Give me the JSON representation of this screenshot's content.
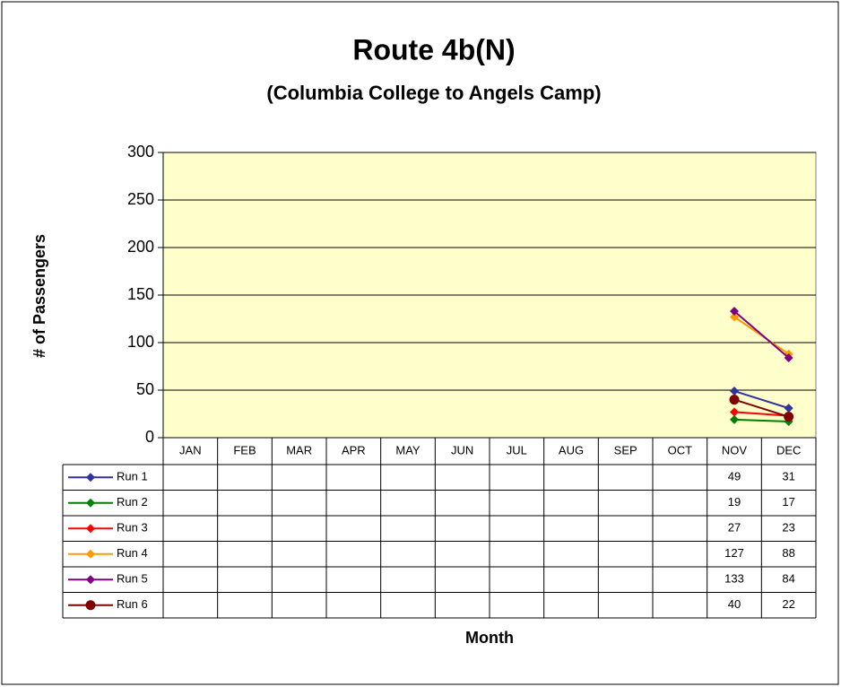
{
  "chart_data": {
    "type": "line",
    "title": "Route 4b(N)",
    "subtitle": "(Columbia College to Angels Camp)",
    "y_label": "# of Passengers",
    "x_label": "Month",
    "categories": [
      "JAN",
      "FEB",
      "MAR",
      "APR",
      "MAY",
      "JUN",
      "JUL",
      "AUG",
      "SEP",
      "OCT",
      "NOV",
      "DEC"
    ],
    "series": [
      {
        "name": "Run 1",
        "color": "#333399",
        "marker": "diamond",
        "values": [
          null,
          null,
          null,
          null,
          null,
          null,
          null,
          null,
          null,
          null,
          49,
          31
        ]
      },
      {
        "name": "Run 2",
        "color": "#008000",
        "marker": "diamond",
        "values": [
          null,
          null,
          null,
          null,
          null,
          null,
          null,
          null,
          null,
          null,
          19,
          17
        ]
      },
      {
        "name": "Run 3",
        "color": "#ff0000",
        "marker": "diamond",
        "values": [
          null,
          null,
          null,
          null,
          null,
          null,
          null,
          null,
          null,
          null,
          27,
          23
        ]
      },
      {
        "name": "Run 4",
        "color": "#ff9900",
        "marker": "diamond",
        "values": [
          null,
          null,
          null,
          null,
          null,
          null,
          null,
          null,
          null,
          null,
          127,
          88
        ]
      },
      {
        "name": "Run 5",
        "color": "#800080",
        "marker": "diamond",
        "values": [
          null,
          null,
          null,
          null,
          null,
          null,
          null,
          null,
          null,
          null,
          133,
          84
        ]
      },
      {
        "name": "Run 6",
        "color": "#800000",
        "marker": "circle",
        "values": [
          null,
          null,
          null,
          null,
          null,
          null,
          null,
          null,
          null,
          null,
          40,
          22
        ]
      }
    ],
    "ylim": [
      0,
      300
    ],
    "yticks": [
      0,
      50,
      100,
      150,
      200,
      250,
      300
    ],
    "grid": true
  }
}
